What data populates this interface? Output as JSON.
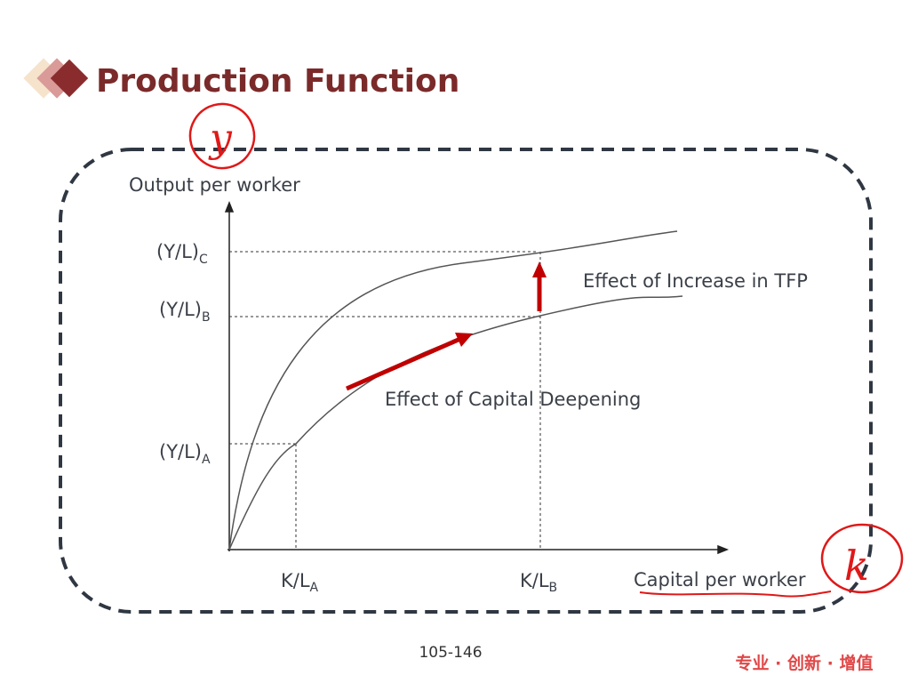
{
  "slide": {
    "title": "Production Function",
    "page_number": "105-146",
    "footer_slogan": "专业 · 创新 · 增值",
    "accent_color": "#7b2a2a",
    "annotation_color": "#e01818"
  },
  "diagram": {
    "y_axis_label": "Output per worker",
    "x_axis_label": "Capital per worker",
    "y_ticks": [
      {
        "base": "(Y/L)",
        "sub": "C"
      },
      {
        "base": "(Y/L)",
        "sub": "B"
      },
      {
        "base": "(Y/L)",
        "sub": "A"
      }
    ],
    "x_ticks": [
      {
        "base": "K/L",
        "sub": "A"
      },
      {
        "base": "K/L",
        "sub": "B"
      }
    ],
    "annotations": {
      "tfp": "Effect of Increase in TFP",
      "deepening": "Effect of Capital Deepening"
    },
    "handwritten": {
      "y": "y",
      "k": "k"
    }
  }
}
